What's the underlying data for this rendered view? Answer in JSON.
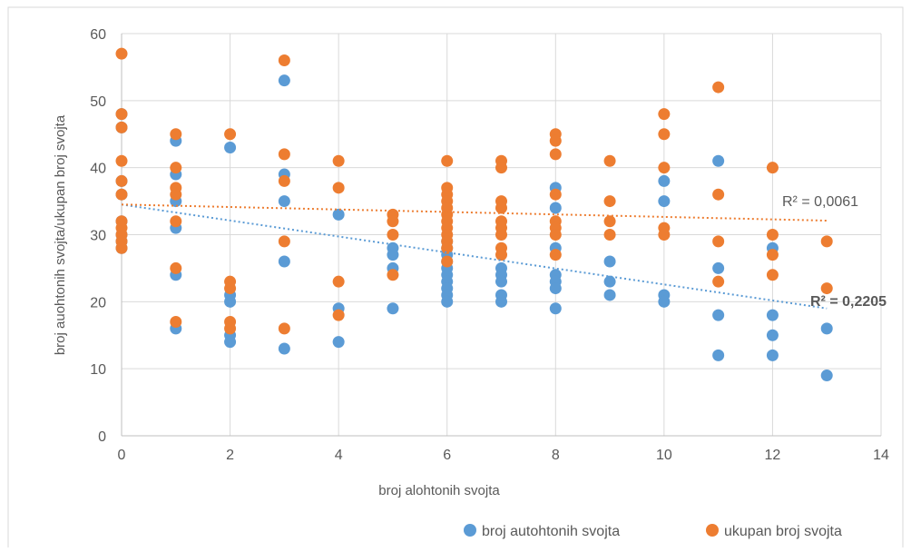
{
  "chart_data": {
    "type": "scatter",
    "title": "",
    "xlabel": "broj alohtonih svojta",
    "ylabel": "broj auohtonih svojta/ukupan broj svojta",
    "xlim": [
      0,
      14
    ],
    "ylim": [
      0,
      60
    ],
    "x_ticks": [
      0,
      2,
      4,
      6,
      8,
      10,
      12,
      14
    ],
    "y_ticks": [
      0,
      10,
      20,
      30,
      40,
      50,
      60
    ],
    "x_tick_labels": [
      "0",
      "2",
      "4",
      "6",
      "8",
      "10",
      "12",
      "14"
    ],
    "y_tick_labels": [
      "0",
      "10",
      "20",
      "30",
      "40",
      "50",
      "60"
    ],
    "grid": true,
    "legend_position": "bottom-right",
    "series": [
      {
        "name": "broj autohtonih svojta",
        "color": "#5b9bd5",
        "points": [
          [
            0,
            48
          ],
          [
            0,
            46
          ],
          [
            0,
            38
          ],
          [
            0,
            36
          ],
          [
            0,
            32
          ],
          [
            0,
            30
          ],
          [
            0,
            29
          ],
          [
            0,
            28
          ],
          [
            1,
            44
          ],
          [
            1,
            39
          ],
          [
            1,
            35
          ],
          [
            1,
            31
          ],
          [
            1,
            24
          ],
          [
            1,
            16
          ],
          [
            2,
            43
          ],
          [
            2,
            21
          ],
          [
            2,
            20
          ],
          [
            2,
            15
          ],
          [
            2,
            14
          ],
          [
            3,
            53
          ],
          [
            3,
            39
          ],
          [
            3,
            35
          ],
          [
            3,
            26
          ],
          [
            3,
            13
          ],
          [
            4,
            33
          ],
          [
            4,
            19
          ],
          [
            4,
            14
          ],
          [
            5,
            28
          ],
          [
            5,
            27
          ],
          [
            5,
            25
          ],
          [
            5,
            19
          ],
          [
            6,
            29
          ],
          [
            6,
            28
          ],
          [
            6,
            27
          ],
          [
            6,
            26
          ],
          [
            6,
            25
          ],
          [
            6,
            24
          ],
          [
            6,
            23
          ],
          [
            6,
            22
          ],
          [
            6,
            21
          ],
          [
            6,
            20
          ],
          [
            7,
            25
          ],
          [
            7,
            24
          ],
          [
            7,
            23
          ],
          [
            7,
            21
          ],
          [
            7,
            20
          ],
          [
            8,
            37
          ],
          [
            8,
            34
          ],
          [
            8,
            28
          ],
          [
            8,
            24
          ],
          [
            8,
            23
          ],
          [
            8,
            22
          ],
          [
            8,
            19
          ],
          [
            9,
            26
          ],
          [
            9,
            23
          ],
          [
            9,
            21
          ],
          [
            10,
            38
          ],
          [
            10,
            35
          ],
          [
            10,
            21
          ],
          [
            10,
            20
          ],
          [
            11,
            41
          ],
          [
            11,
            25
          ],
          [
            11,
            18
          ],
          [
            11,
            12
          ],
          [
            12,
            28
          ],
          [
            12,
            18
          ],
          [
            12,
            15
          ],
          [
            12,
            12
          ],
          [
            13,
            16
          ],
          [
            13,
            9
          ]
        ],
        "trendline": {
          "type": "linear",
          "y_at_xmin": 34.5,
          "y_at_xmax": 19.0,
          "x_range": [
            0,
            13
          ],
          "r2_label": "R² = 0,2205"
        }
      },
      {
        "name": "ukupan broj svojta",
        "color": "#ed7d31",
        "points": [
          [
            0,
            57
          ],
          [
            0,
            48
          ],
          [
            0,
            46
          ],
          [
            0,
            41
          ],
          [
            0,
            38
          ],
          [
            0,
            36
          ],
          [
            0,
            32
          ],
          [
            0,
            31
          ],
          [
            0,
            30
          ],
          [
            0,
            29
          ],
          [
            0,
            28
          ],
          [
            1,
            45
          ],
          [
            1,
            40
          ],
          [
            1,
            37
          ],
          [
            1,
            36
          ],
          [
            1,
            32
          ],
          [
            1,
            25
          ],
          [
            1,
            17
          ],
          [
            2,
            45
          ],
          [
            2,
            23
          ],
          [
            2,
            22
          ],
          [
            2,
            17
          ],
          [
            2,
            16
          ],
          [
            3,
            56
          ],
          [
            3,
            42
          ],
          [
            3,
            38
          ],
          [
            3,
            29
          ],
          [
            3,
            16
          ],
          [
            4,
            41
          ],
          [
            4,
            37
          ],
          [
            4,
            23
          ],
          [
            4,
            18
          ],
          [
            5,
            33
          ],
          [
            5,
            32
          ],
          [
            5,
            30
          ],
          [
            5,
            24
          ],
          [
            6,
            41
          ],
          [
            6,
            37
          ],
          [
            6,
            36
          ],
          [
            6,
            35
          ],
          [
            6,
            34
          ],
          [
            6,
            33
          ],
          [
            6,
            32
          ],
          [
            6,
            31
          ],
          [
            6,
            30
          ],
          [
            6,
            29
          ],
          [
            6,
            28
          ],
          [
            6,
            26
          ],
          [
            7,
            41
          ],
          [
            7,
            40
          ],
          [
            7,
            35
          ],
          [
            7,
            34
          ],
          [
            7,
            32
          ],
          [
            7,
            31
          ],
          [
            7,
            30
          ],
          [
            7,
            28
          ],
          [
            7,
            27
          ],
          [
            8,
            45
          ],
          [
            8,
            44
          ],
          [
            8,
            42
          ],
          [
            8,
            36
          ],
          [
            8,
            32
          ],
          [
            8,
            31
          ],
          [
            8,
            30
          ],
          [
            8,
            27
          ],
          [
            9,
            41
          ],
          [
            9,
            35
          ],
          [
            9,
            32
          ],
          [
            9,
            30
          ],
          [
            10,
            48
          ],
          [
            10,
            45
          ],
          [
            10,
            40
          ],
          [
            10,
            31
          ],
          [
            10,
            30
          ],
          [
            11,
            52
          ],
          [
            11,
            36
          ],
          [
            11,
            29
          ],
          [
            11,
            23
          ],
          [
            12,
            40
          ],
          [
            12,
            30
          ],
          [
            12,
            27
          ],
          [
            12,
            24
          ],
          [
            13,
            29
          ],
          [
            13,
            22
          ]
        ],
        "trendline": {
          "type": "linear",
          "y_at_xmin": 34.5,
          "y_at_xmax": 32.1,
          "x_range": [
            0,
            13
          ],
          "r2_label": "R² = 0,0061"
        }
      }
    ]
  }
}
